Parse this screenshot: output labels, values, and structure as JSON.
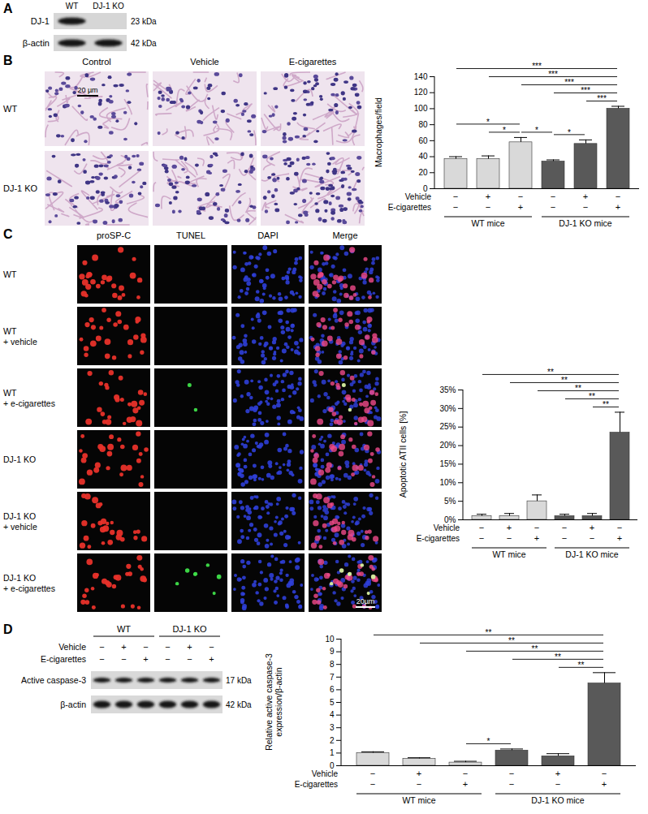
{
  "figure": {
    "panel_A": {
      "letter": "A",
      "lanes": [
        "WT",
        "DJ-1 KO"
      ],
      "rows": [
        {
          "label": "DJ-1",
          "size": "23 kDa",
          "bands": [
            true,
            false
          ]
        },
        {
          "label": "β-actin",
          "size": "42 kDa",
          "bands": [
            true,
            true
          ]
        }
      ]
    },
    "panel_B": {
      "letter": "B",
      "columns": [
        "Control",
        "Vehicle",
        "E-cigarettes"
      ],
      "rows": [
        "WT",
        "DJ-1 KO"
      ],
      "scale_bar": "20 µm"
    },
    "panel_C": {
      "letter": "C",
      "columns": [
        "proSP-C",
        "TUNEL",
        "DAPI",
        "Merge"
      ],
      "rows": [
        [
          "WT"
        ],
        [
          "WT",
          "+ vehicle"
        ],
        [
          "WT",
          "+ e-cigarettes"
        ],
        [
          "DJ-1 KO"
        ],
        [
          "DJ-1 KO",
          "+ vehicle"
        ],
        [
          "DJ-1 KO",
          "+ e-cigarettes"
        ]
      ],
      "scale_bar": "20µm"
    },
    "panel_D": {
      "letter": "D",
      "groups": [
        {
          "label": "WT",
          "count": 3
        },
        {
          "label": "DJ-1 KO",
          "count": 3
        }
      ],
      "conditions": [
        {
          "label": "Vehicle",
          "marks": [
            "−",
            "+",
            "−",
            "−",
            "+",
            "−"
          ]
        },
        {
          "label": "E-cigarettes",
          "marks": [
            "−",
            "−",
            "+",
            "−",
            "−",
            "+"
          ]
        }
      ],
      "rows": [
        {
          "label": "Active caspase-3",
          "size": "17 kDa",
          "bands": [
            true,
            true,
            true,
            true,
            true,
            true
          ]
        },
        {
          "label": "β-actin",
          "size": "42 kDa",
          "bands": [
            true,
            true,
            true,
            true,
            true,
            true
          ]
        }
      ]
    }
  },
  "chart_data": [
    {
      "type": "bar",
      "y_label": "Macrophages/field",
      "categories": [
        null,
        null,
        null,
        null,
        null,
        null
      ],
      "values": [
        37,
        37,
        58,
        34,
        56,
        100
      ],
      "errors": [
        3,
        4,
        6,
        2,
        5,
        3
      ],
      "colors": [
        "#d9d9d9",
        "#d9d9d9",
        "#d9d9d9",
        "#595959",
        "#595959",
        "#595959"
      ],
      "ylim": [
        0,
        140
      ],
      "yticks": [
        0,
        20,
        40,
        60,
        80,
        100,
        120,
        140
      ],
      "tick_labels": "y",
      "conditions": [
        {
          "label": "Vehicle",
          "marks": [
            "−",
            "+",
            "−",
            "−",
            "+",
            "−"
          ]
        },
        {
          "label": "E-cigarettes",
          "marks": [
            "−",
            "−",
            "+",
            "−",
            "−",
            "+"
          ]
        }
      ],
      "groups": [
        {
          "label": "WT mice",
          "count": 3
        },
        {
          "label": "DJ-1 KO mice",
          "count": 3
        }
      ],
      "significance": [
        {
          "from": 0,
          "to": 2,
          "label": "*"
        },
        {
          "from": 1,
          "to": 2,
          "label": "*"
        },
        {
          "from": 2,
          "to": 3,
          "label": "*"
        },
        {
          "from": 3,
          "to": 4,
          "label": "*"
        },
        {
          "from": 0,
          "to": 5,
          "label": "***"
        },
        {
          "from": 1,
          "to": 5,
          "label": "***"
        },
        {
          "from": 2,
          "to": 5,
          "label": "***"
        },
        {
          "from": 3,
          "to": 5,
          "label": "***"
        },
        {
          "from": 4,
          "to": 5,
          "label": "***"
        }
      ]
    },
    {
      "type": "bar",
      "y_label": "Apoptotic ATII cells [%]",
      "categories": [
        null,
        null,
        null,
        null,
        null,
        null
      ],
      "values": [
        1,
        1,
        5,
        1,
        1,
        23.5
      ],
      "errors": [
        0.5,
        0.7,
        1.7,
        0.5,
        0.7,
        5.5
      ],
      "colors": [
        "#d9d9d9",
        "#d9d9d9",
        "#d9d9d9",
        "#595959",
        "#595959",
        "#595959"
      ],
      "ylim": [
        0,
        35
      ],
      "yticks": [
        {
          "value": 0,
          "label": "0%"
        },
        {
          "value": 5,
          "label": "5%"
        },
        {
          "value": 10,
          "label": "10%"
        },
        {
          "value": 15,
          "label": "15%"
        },
        {
          "value": 20,
          "label": "20%"
        },
        {
          "value": 25,
          "label": "25%"
        },
        {
          "value": 30,
          "label": "30%"
        },
        {
          "value": 35,
          "label": "35%"
        }
      ],
      "tick_labels": "y",
      "conditions": [
        {
          "label": "Vehicle",
          "marks": [
            "−",
            "+",
            "−",
            "−",
            "+",
            "−"
          ]
        },
        {
          "label": "E-cigarettes",
          "marks": [
            "−",
            "−",
            "+",
            "−",
            "−",
            "+"
          ]
        }
      ],
      "groups": [
        {
          "label": "WT mice",
          "count": 3
        },
        {
          "label": "DJ-1 KO mice",
          "count": 3
        }
      ],
      "significance": [
        {
          "from": 0,
          "to": 5,
          "label": "**"
        },
        {
          "from": 1,
          "to": 5,
          "label": "**"
        },
        {
          "from": 2,
          "to": 5,
          "label": "**"
        },
        {
          "from": 3,
          "to": 5,
          "label": "**"
        },
        {
          "from": 4,
          "to": 5,
          "label": "**"
        }
      ]
    },
    {
      "type": "bar",
      "y_label": "Relative active caspase-3 expression/β-actin",
      "categories": [
        null,
        null,
        null,
        null,
        null,
        null
      ],
      "values": [
        1.0,
        0.55,
        0.25,
        1.2,
        0.75,
        6.5
      ],
      "errors": [
        0.1,
        0.08,
        0.1,
        0.12,
        0.2,
        0.85
      ],
      "colors": [
        "#d9d9d9",
        "#d9d9d9",
        "#d9d9d9",
        "#595959",
        "#595959",
        "#595959"
      ],
      "ylim": [
        0,
        10
      ],
      "yticks": [
        0,
        1,
        2,
        3,
        4,
        5,
        6,
        7,
        8,
        9,
        10
      ],
      "tick_labels": "y",
      "conditions": [
        {
          "label": "Vehicle",
          "marks": [
            "−",
            "+",
            "−",
            "−",
            "+",
            "−"
          ]
        },
        {
          "label": "E-cigarettes",
          "marks": [
            "−",
            "−",
            "+",
            "−",
            "−",
            "+"
          ]
        }
      ],
      "groups": [
        {
          "label": "WT mice",
          "count": 3
        },
        {
          "label": "DJ-1 KO mice",
          "count": 3
        }
      ],
      "significance": [
        {
          "from": 2,
          "to": 3,
          "label": "*"
        },
        {
          "from": 0,
          "to": 5,
          "label": "**"
        },
        {
          "from": 1,
          "to": 5,
          "label": "**"
        },
        {
          "from": 2,
          "to": 5,
          "label": "**"
        },
        {
          "from": 3,
          "to": 5,
          "label": "**"
        },
        {
          "from": 4,
          "to": 5,
          "label": "**"
        }
      ]
    }
  ]
}
